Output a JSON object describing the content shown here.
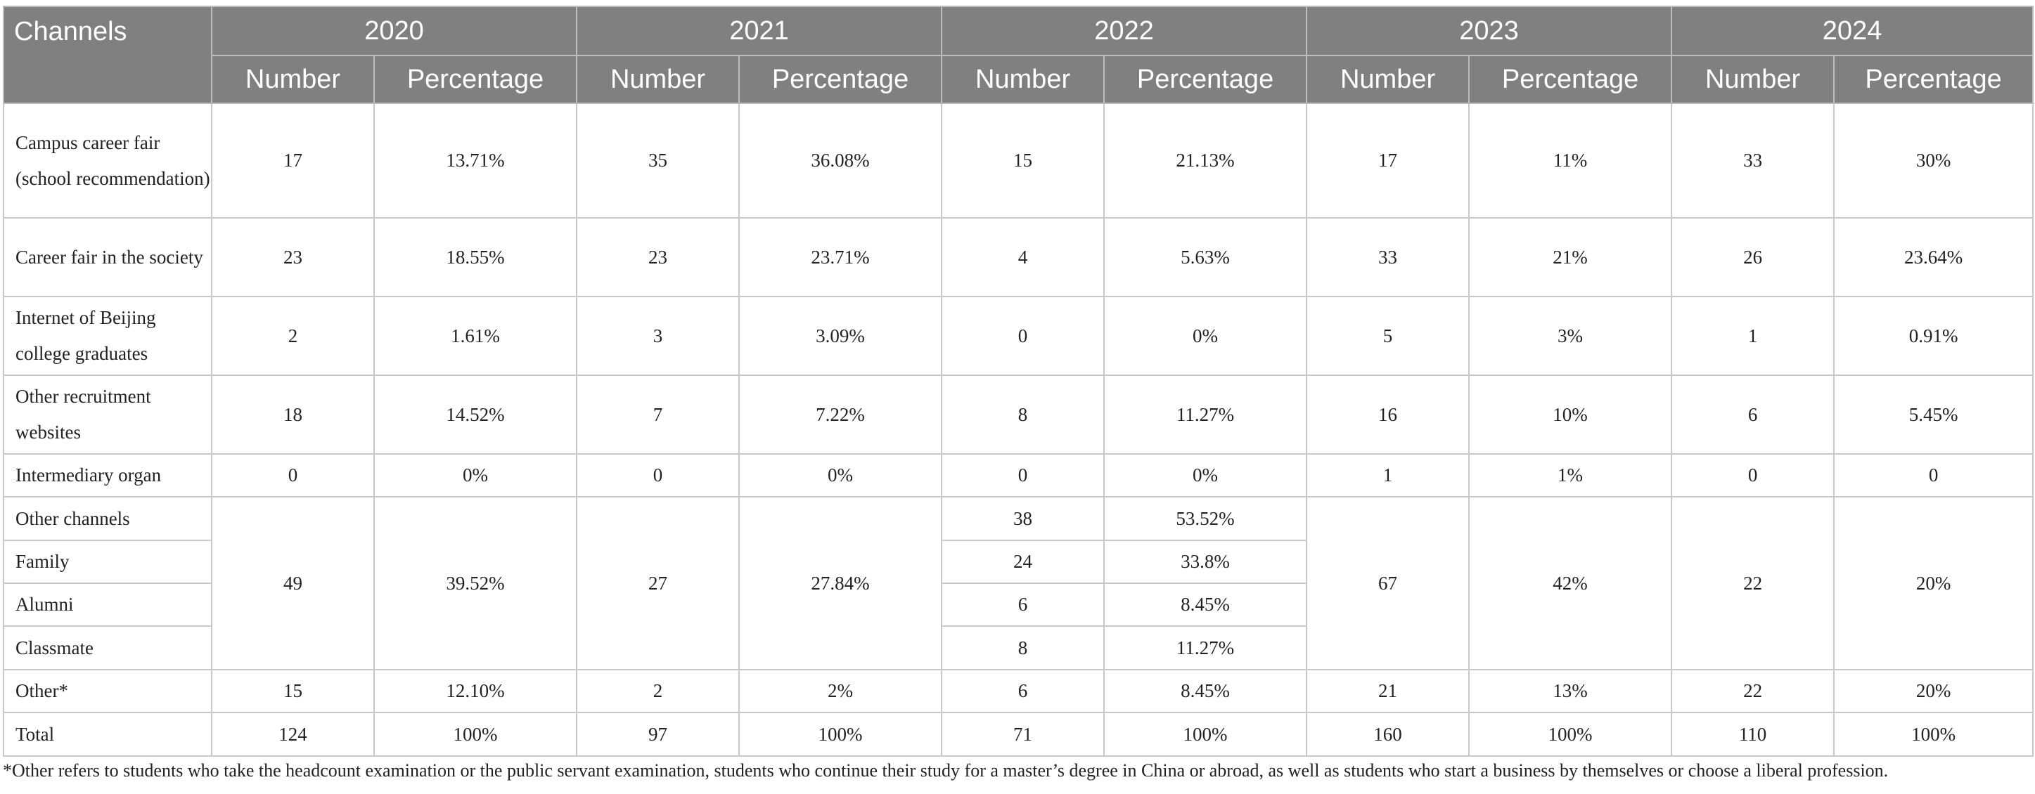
{
  "table": {
    "channels_header": "Channels",
    "years": [
      "2020",
      "2021",
      "2022",
      "2023",
      "2024"
    ],
    "number_label": "Number",
    "percentage_label": "Percentage",
    "rows": [
      {
        "label": "Campus career fair (school recommendation)",
        "values": [
          "17",
          "13.71%",
          "35",
          "36.08%",
          "15",
          "21.13%",
          "17",
          "11%",
          "33",
          "30%"
        ]
      },
      {
        "label": "Career fair in the society",
        "values": [
          "23",
          "18.55%",
          "23",
          "23.71%",
          "4",
          "5.63%",
          "33",
          "21%",
          "26",
          "23.64%"
        ]
      },
      {
        "label": "Internet of Beijing college graduates",
        "values": [
          "2",
          "1.61%",
          "3",
          "3.09%",
          "0",
          "0%",
          "5",
          "3%",
          "1",
          "0.91%"
        ]
      },
      {
        "label": "Other recruitment websites",
        "values": [
          "18",
          "14.52%",
          "7",
          "7.22%",
          "8",
          "11.27%",
          "16",
          "10%",
          "6",
          "5.45%"
        ]
      },
      {
        "label": "Intermediary organ",
        "values": [
          "0",
          "0%",
          "0",
          "0%",
          "0",
          "0%",
          "1",
          "1%",
          "0",
          "0"
        ]
      }
    ],
    "grouped": {
      "labels": [
        "Other channels",
        "Family",
        "Alumni",
        "Classmate"
      ],
      "y2020": {
        "number": "49",
        "percentage": "39.52%"
      },
      "y2021": {
        "number": "27",
        "percentage": "27.84%"
      },
      "y2022": [
        {
          "number": "38",
          "percentage": "53.52%"
        },
        {
          "number": "24",
          "percentage": "33.8%"
        },
        {
          "number": "6",
          "percentage": "8.45%"
        },
        {
          "number": "8",
          "percentage": "11.27%"
        }
      ],
      "y2023": {
        "number": "67",
        "percentage": "42%"
      },
      "y2024": {
        "number": "22",
        "percentage": "20%"
      }
    },
    "tail_rows": [
      {
        "label": "Other*",
        "values": [
          "15",
          "12.10%",
          "2",
          "2%",
          "6",
          "8.45%",
          "21",
          "13%",
          "22",
          "20%"
        ]
      },
      {
        "label": "Total",
        "values": [
          "124",
          "100%",
          "97",
          "100%",
          "71",
          "100%",
          "160",
          "100%",
          "110",
          "100%"
        ]
      }
    ]
  },
  "footnote": "*Other refers to students who take the headcount examination or the public servant examination, students who continue their study for a master’s degree in China or abroad, as well as students who start a business by themselves or choose a liberal profession."
}
